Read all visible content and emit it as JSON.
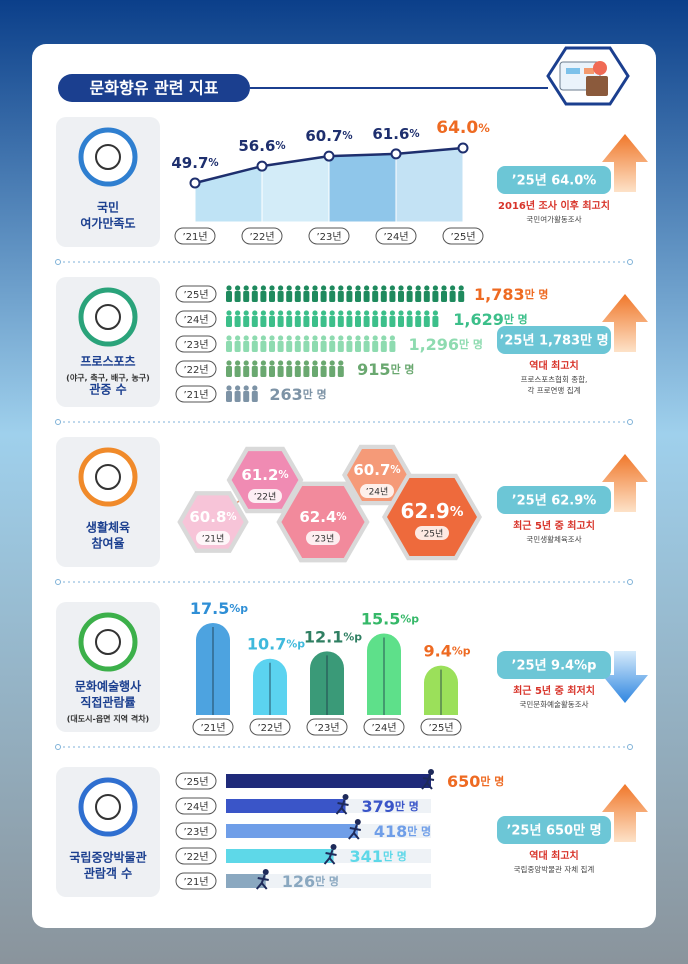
{
  "title": "문화향유 관련 지표",
  "chart_data": [
    {
      "type": "line",
      "title": [
        "국민",
        "여가만족도"
      ],
      "categories": [
        "’21년",
        "’22년",
        "’23년",
        "’24년",
        "’25년"
      ],
      "values": [
        49.7,
        56.6,
        60.7,
        61.6,
        64.0
      ],
      "value_labels": [
        "49.7",
        "56.6",
        "60.7",
        "61.6",
        "64.0"
      ],
      "unit": "%",
      "color": "#1e2f6e",
      "highlight_color": "#ee6a22",
      "callout": "’25년 64.0%",
      "note": "2016년 조사 이후 최고치",
      "source": [
        "국민여가활동조사"
      ],
      "trend": "up",
      "icon_color": "#2f7fd0"
    },
    {
      "type": "pictogram",
      "title": [
        "프로스포츠",
        "(야구, 축구, 배구, 농구)",
        "관중 수"
      ],
      "categories": [
        "’25년",
        "’24년",
        "’23년",
        "’22년",
        "’21년"
      ],
      "values": [
        1783,
        1629,
        1296,
        915,
        263
      ],
      "value_labels": [
        "1,783",
        "1,629",
        "1,296",
        "915",
        "263"
      ],
      "unit": "만 명",
      "colors": [
        "#1f8a5e",
        "#3cbf8a",
        "#8edbb0",
        "#6aa870",
        "#7d93a6"
      ],
      "highlight_color": "#ee6a22",
      "callout": "’25년 1,783만 명",
      "note": "역대 최고치",
      "source": [
        "프로스포츠협회 종합,",
        "각 프로연맹 집계"
      ],
      "trend": "up",
      "icon_color": "#2aa37a"
    },
    {
      "type": "hexagon",
      "title": [
        "생활체육",
        "참여율"
      ],
      "categories": [
        "’21년",
        "’22년",
        "’23년",
        "’24년",
        "’25년"
      ],
      "values": [
        60.8,
        61.2,
        62.4,
        60.7,
        62.9
      ],
      "unit": "%",
      "colors": [
        "#f7c4d8",
        "#f08bb3",
        "#f28a9c",
        "#f59a78",
        "#ee6a3c"
      ],
      "callout": "’25년 62.9%",
      "note": "최근 5년 중 최고치",
      "source": [
        "국민생활체육조사"
      ],
      "trend": "up",
      "icon_color": "#f08a2a"
    },
    {
      "type": "bar",
      "title": [
        "문화예술행사",
        "직접관람률",
        "(대도시-읍면 지역 격차)"
      ],
      "categories": [
        "’21년",
        "’22년",
        "’23년",
        "’24년",
        "’25년"
      ],
      "values": [
        17.5,
        10.7,
        12.1,
        15.5,
        9.4
      ],
      "unit": "%p",
      "colors": [
        "#4da3e0",
        "#5bd3f0",
        "#3a9a78",
        "#5ee08a",
        "#9be05a"
      ],
      "label_colors": [
        "#2f8fd6",
        "#3fb9dc",
        "#2f7f62",
        "#35b868",
        "#ee6a22"
      ],
      "callout": "’25년 9.4%p",
      "note": "최근 5년 중 최저치",
      "source": [
        "국민문화예술활동조사"
      ],
      "trend": "down",
      "icon_color": "#3cb04a"
    },
    {
      "type": "hbar",
      "title": [
        "국립중앙박물관",
        "관람객 수"
      ],
      "categories": [
        "’25년",
        "’24년",
        "’23년",
        "’22년",
        "’21년"
      ],
      "values": [
        650,
        379,
        418,
        341,
        126
      ],
      "unit": "만 명",
      "colors": [
        "#1f2a7a",
        "#3a55c8",
        "#6f9ee8",
        "#5ed8e8",
        "#8aa8c0"
      ],
      "highlight_color": "#ee6a22",
      "callout": "’25년 650만 명",
      "note": "역대 최고치",
      "source": [
        "국립중앙박물관 자체 집계"
      ],
      "trend": "up",
      "icon_color": "#2f6fd0"
    }
  ]
}
